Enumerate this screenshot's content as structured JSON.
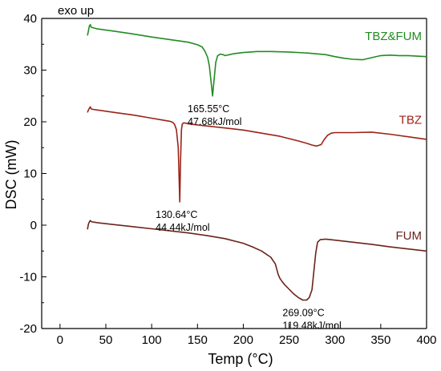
{
  "chart_data": {
    "type": "line",
    "title": "",
    "xlabel": "Temp (°C)",
    "ylabel": "DSC (mW)",
    "xlim": [
      -20,
      400
    ],
    "ylim": [
      -20,
      40
    ],
    "x_ticks": [
      0,
      50,
      100,
      150,
      200,
      250,
      300,
      350,
      400
    ],
    "y_ticks": [
      -20,
      -10,
      0,
      10,
      20,
      30,
      40
    ],
    "corner_note": "exo up",
    "grid": false,
    "series": [
      {
        "name": "TBZ&FUM",
        "color": "#218c21",
        "x": [
          30,
          31,
          32,
          33,
          34,
          36,
          40,
          60,
          80,
          100,
          120,
          140,
          150,
          155,
          158,
          161,
          163,
          165,
          166.5,
          168,
          170,
          172,
          175,
          178,
          180,
          185,
          190,
          200,
          215,
          230,
          250,
          270,
          290,
          300,
          310,
          320,
          330,
          340,
          350,
          360,
          370,
          380,
          390,
          400
        ],
        "y": [
          36.7,
          37.6,
          38.5,
          38.8,
          38.3,
          38.2,
          38.0,
          37.5,
          37.0,
          36.4,
          35.9,
          35.4,
          34.9,
          34.5,
          33.7,
          32.5,
          30.8,
          27.5,
          25.0,
          28.0,
          31.5,
          32.8,
          33.1,
          33.0,
          32.8,
          33.0,
          33.2,
          33.4,
          33.6,
          33.6,
          33.5,
          33.3,
          33.0,
          32.6,
          32.3,
          32.1,
          32.0,
          32.4,
          32.8,
          32.9,
          32.8,
          32.8,
          32.7,
          32.6
        ]
      },
      {
        "name": "TBZ",
        "color": "#9b2318",
        "x": [
          30,
          31,
          32,
          33,
          34,
          36,
          40,
          60,
          80,
          100,
          110,
          120,
          123,
          125,
          127,
          129,
          130.64,
          131.5,
          132.5,
          133.5,
          135,
          138,
          140,
          160,
          180,
          200,
          220,
          240,
          260,
          270,
          275,
          280,
          285,
          288,
          292,
          296,
          300,
          320,
          340,
          360,
          380,
          400
        ],
        "y": [
          21.8,
          22.3,
          22.6,
          22.9,
          22.5,
          22.4,
          22.3,
          21.8,
          21.3,
          20.7,
          20.4,
          20.1,
          19.9,
          19.5,
          18.5,
          15.0,
          4.5,
          12.0,
          18.5,
          19.6,
          19.8,
          19.7,
          19.6,
          19.2,
          18.8,
          18.4,
          17.8,
          17.2,
          16.3,
          15.8,
          15.5,
          15.3,
          15.6,
          16.5,
          17.4,
          17.8,
          17.9,
          17.9,
          18.0,
          17.6,
          17.1,
          16.6
        ]
      },
      {
        "name": "FUM",
        "color": "#6b231c",
        "x": [
          30,
          31,
          32,
          33,
          34,
          36,
          40,
          60,
          80,
          100,
          120,
          140,
          160,
          180,
          200,
          210,
          220,
          230,
          235,
          238,
          240,
          242,
          245,
          250,
          255,
          260,
          265,
          269.09,
          272,
          275,
          277,
          279,
          281,
          284,
          290,
          300,
          320,
          340,
          360,
          380,
          400
        ],
        "y": [
          -0.8,
          0.2,
          0.6,
          0.9,
          0.7,
          0.6,
          0.5,
          0.1,
          -0.3,
          -0.7,
          -1.1,
          -1.5,
          -2.0,
          -2.6,
          -3.5,
          -4.2,
          -5.0,
          -6.2,
          -7.5,
          -9.5,
          -10.3,
          -10.8,
          -11.5,
          -12.4,
          -13.3,
          -14.0,
          -14.5,
          -14.5,
          -14.0,
          -12.5,
          -9.0,
          -5.5,
          -3.3,
          -2.8,
          -2.7,
          -2.9,
          -3.3,
          -3.7,
          -4.2,
          -4.6,
          -5.0
        ]
      }
    ],
    "annotations": [
      {
        "text": "165.55°C",
        "x": 165.55,
        "y": 25.0
      },
      {
        "text": "47.68kJ/mol",
        "x": 165.55,
        "y": 25.0
      },
      {
        "text": "130.64°C",
        "x": 130.64,
        "y": 4.5
      },
      {
        "text": "44.44kJ/mol",
        "x": 130.64,
        "y": 4.5
      },
      {
        "text": "269.09°C",
        "x": 269.09,
        "y": -14.5
      },
      {
        "text": "119.48kJ/mol",
        "x": 269.09,
        "y": -14.5
      }
    ]
  }
}
